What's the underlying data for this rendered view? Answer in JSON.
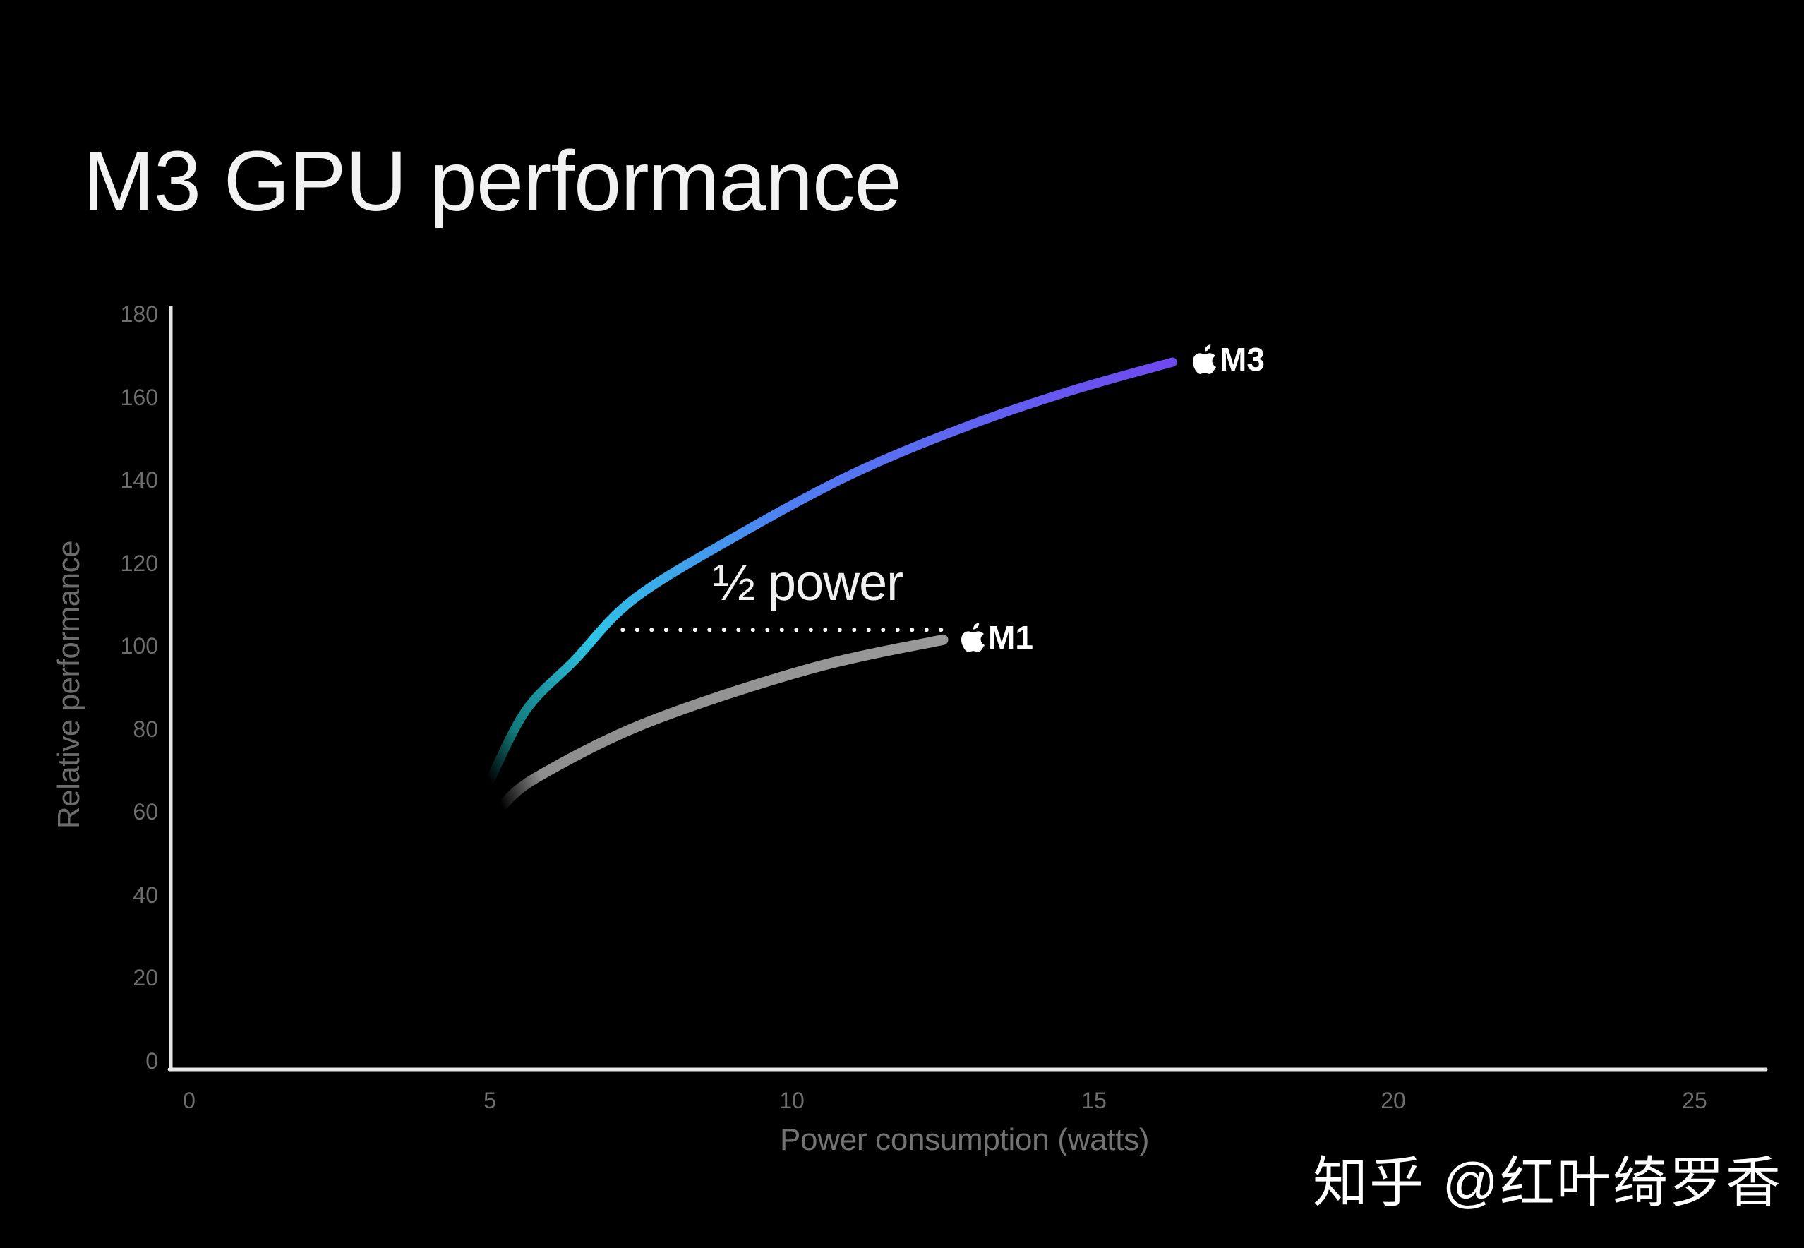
{
  "title": "M3 GPU performance",
  "annotation": "½ power",
  "watermark": "知乎 @红叶绮罗香",
  "axes": {
    "xlabel": "Power consumption (watts)",
    "ylabel": "Relative performance",
    "yticks": [
      "0",
      "20",
      "40",
      "60",
      "80",
      "100",
      "120",
      "140",
      "160",
      "180"
    ],
    "xticks": [
      "0",
      "5",
      "10",
      "15",
      "20",
      "25"
    ]
  },
  "legend": {
    "m3": {
      "icon": "apple-logo-icon",
      "label": "M3"
    },
    "m1": {
      "icon": "apple-logo-icon",
      "label": "M1"
    }
  },
  "colors": {
    "background": "#000000",
    "axis": "#e6e6e6",
    "tick_text": "#6e6e6e",
    "m3_gradient": [
      "#127a7a",
      "#2fc4e6",
      "#4f7ef2",
      "#7048f0"
    ],
    "m1": "#8e8e8e",
    "dotted_line": "#ffffff"
  },
  "chart_data": {
    "type": "line",
    "title": "M3 GPU performance",
    "xlabel": "Power consumption (watts)",
    "ylabel": "Relative performance",
    "xlim": [
      0,
      26
    ],
    "ylim": [
      0,
      180
    ],
    "xticks": [
      0,
      5,
      10,
      15,
      20,
      25
    ],
    "yticks": [
      0,
      20,
      40,
      60,
      80,
      100,
      120,
      140,
      160,
      180
    ],
    "grid": false,
    "legend_position": "inline-at-line-end",
    "series": [
      {
        "name": "M3",
        "x": [
          5.0,
          5.6,
          6.4,
          7.4,
          9.2,
          11.0,
          12.8,
          14.6,
          16.3
        ],
        "y": [
          68,
          85,
          97,
          112,
          128,
          142,
          153,
          162,
          169
        ]
      },
      {
        "name": "M1",
        "x": [
          5.2,
          5.8,
          7.6,
          10.3,
          12.5
        ],
        "y": [
          62,
          69,
          82,
          95,
          102
        ]
      }
    ],
    "annotations": [
      {
        "text": "½ power",
        "type": "dotted-horizontal-line",
        "y": 102,
        "x_from": 7.2,
        "x_to": 12.5
      }
    ]
  }
}
